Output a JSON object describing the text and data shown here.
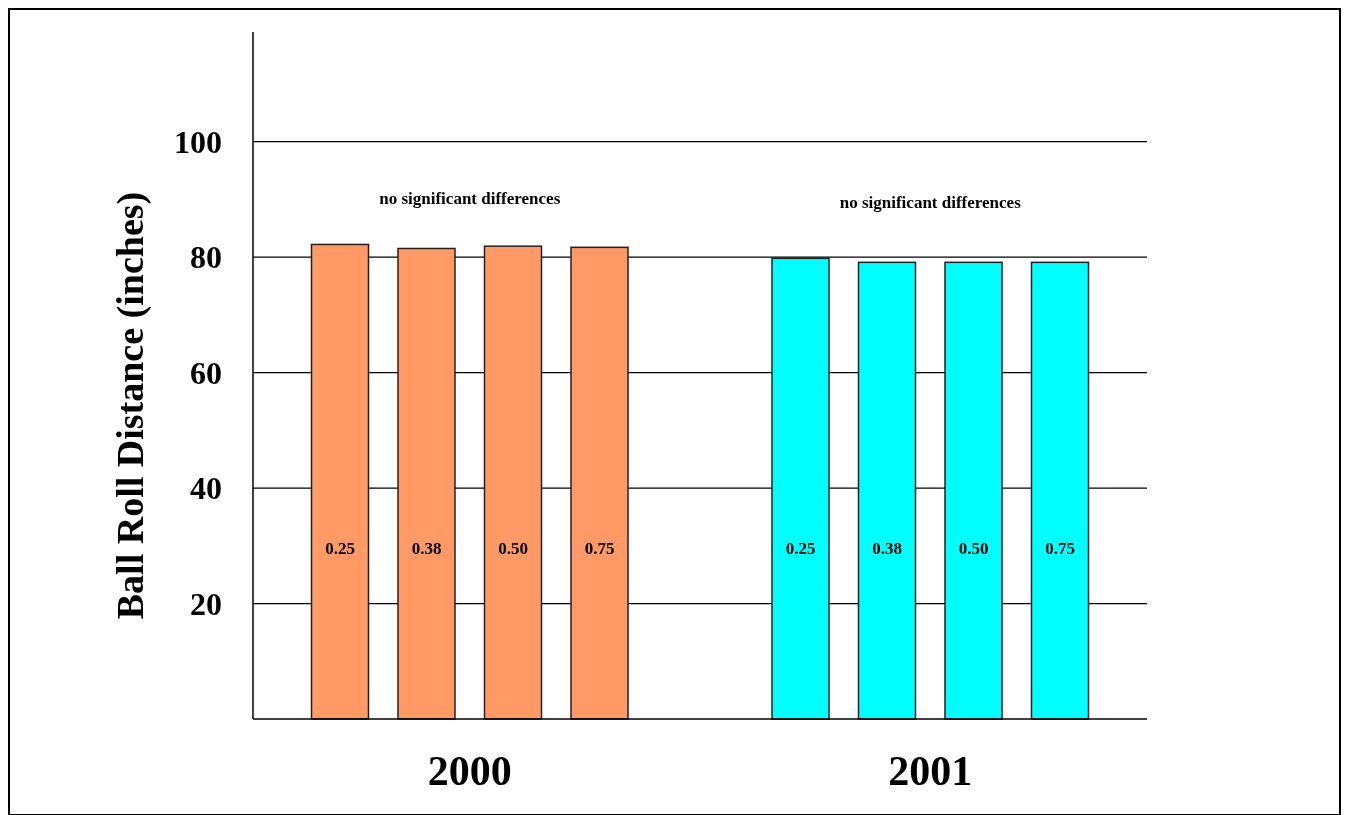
{
  "chart_data": {
    "type": "bar",
    "ylabel": "Ball Roll Distance (inches)",
    "categories": [
      "0.25",
      "0.38",
      "0.50",
      "0.75",
      "0.25",
      "0.38",
      "0.50",
      "0.75"
    ],
    "series": [
      {
        "name": "2000",
        "color": "#ff9966",
        "values": [
          82.2,
          81.5,
          81.9,
          81.7,
          null,
          null,
          null,
          null
        ]
      },
      {
        "name": "2001",
        "color": "#00ffff",
        "values": [
          null,
          null,
          null,
          null,
          79.8,
          79.1,
          79.1,
          79.1
        ]
      }
    ],
    "ylim": [
      0,
      119
    ],
    "yticks": [
      20,
      40,
      60,
      80,
      100
    ],
    "grid": "y",
    "annotations": [
      "no significant differences",
      "no significant differences"
    ]
  }
}
